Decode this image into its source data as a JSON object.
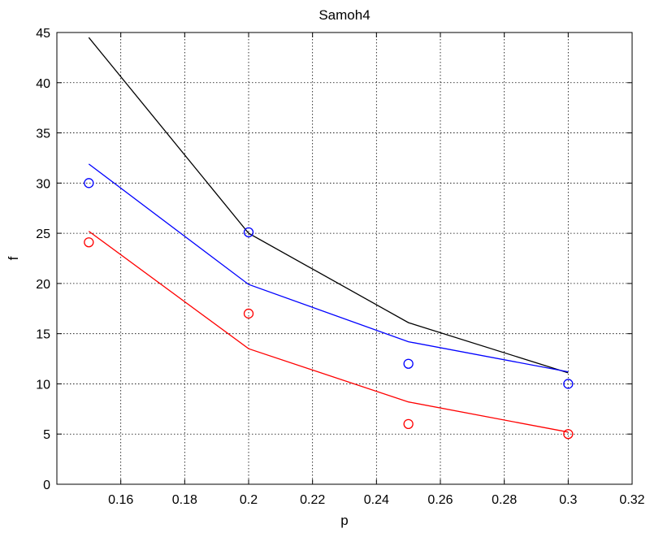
{
  "chart_data": {
    "type": "line",
    "title": "Samoh4",
    "xlabel": "p",
    "ylabel": "f",
    "xlim": [
      0.14,
      0.32
    ],
    "ylim": [
      0,
      45
    ],
    "xticks": [
      0.16,
      0.18,
      0.2,
      0.22,
      0.24,
      0.26,
      0.28,
      0.3,
      0.32
    ],
    "xtick_labels": [
      "0.16",
      "0.18",
      "0.2",
      "0.22",
      "0.24",
      "0.26",
      "0.28",
      "0.3",
      "0.32"
    ],
    "yticks": [
      0,
      5,
      10,
      15,
      20,
      25,
      30,
      35,
      40,
      45
    ],
    "ytick_labels": [
      "0",
      "5",
      "10",
      "15",
      "20",
      "25",
      "30",
      "35",
      "40",
      "45"
    ],
    "grid": true,
    "lines": [
      {
        "color": "#000000",
        "x": [
          0.15,
          0.2,
          0.25,
          0.3
        ],
        "y": [
          44.5,
          25.0,
          16.1,
          11.1
        ]
      },
      {
        "color": "#0000ff",
        "x": [
          0.15,
          0.2,
          0.25,
          0.3
        ],
        "y": [
          31.9,
          19.9,
          14.2,
          11.2
        ]
      },
      {
        "color": "#ff0000",
        "x": [
          0.15,
          0.2,
          0.25,
          0.3
        ],
        "y": [
          25.2,
          13.5,
          8.2,
          5.2
        ]
      }
    ],
    "markers": [
      {
        "color": "#0000ff",
        "marker": "circle",
        "x": [
          0.15,
          0.2,
          0.25,
          0.3
        ],
        "y": [
          30,
          25.1,
          12,
          10
        ]
      },
      {
        "color": "#ff0000",
        "marker": "circle",
        "x": [
          0.15,
          0.2,
          0.25,
          0.3
        ],
        "y": [
          24.1,
          17,
          6,
          5
        ]
      }
    ]
  }
}
